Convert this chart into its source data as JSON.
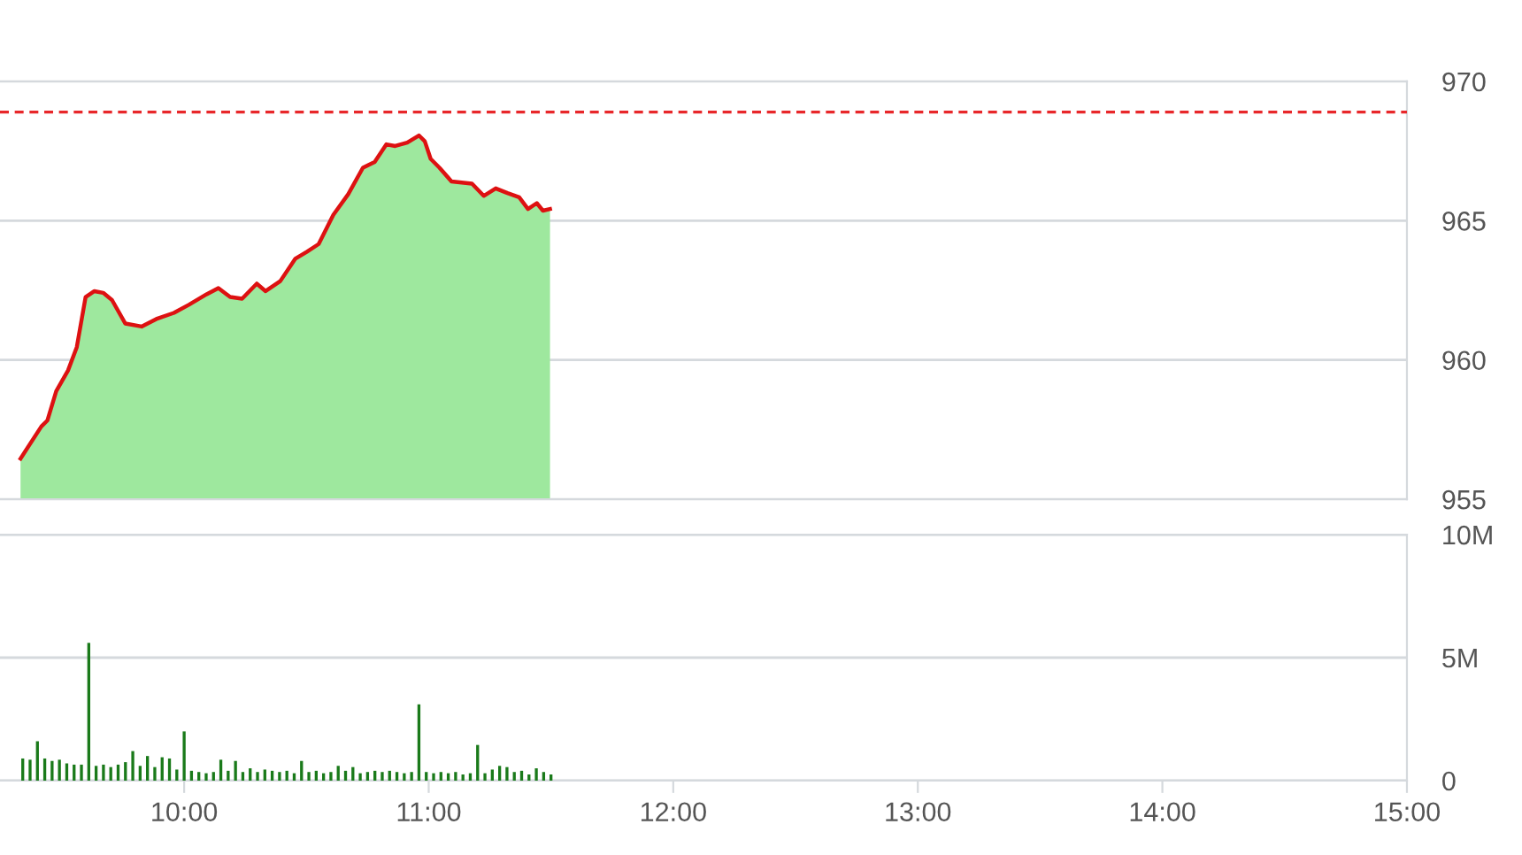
{
  "chart_data": [
    {
      "type": "area",
      "xlim": [
        9.247,
        15.0
      ],
      "ylim": [
        955,
        970
      ],
      "yticks": [
        955,
        960,
        965,
        970
      ],
      "grid": "y",
      "tick_labels": "y",
      "x": [
        9.331,
        9.416,
        9.441,
        9.477,
        9.525,
        9.561,
        9.597,
        9.633,
        9.669,
        9.705,
        9.759,
        9.826,
        9.886,
        9.958,
        10.019,
        10.092,
        10.14,
        10.188,
        10.237,
        10.297,
        10.333,
        10.393,
        10.454,
        10.501,
        10.55,
        10.61,
        10.671,
        10.731,
        10.779,
        10.827,
        10.863,
        10.912,
        10.96,
        10.984,
        11.008,
        11.044,
        11.093,
        11.177,
        11.225,
        11.274,
        11.322,
        11.37,
        11.406,
        11.442,
        11.467,
        11.496
      ],
      "series": [
        {
          "type": "area",
          "color": "#9ee89e",
          "values": [
            956.46,
            957.61,
            957.83,
            958.88,
            959.62,
            960.46,
            962.26,
            962.47,
            962.41,
            962.15,
            961.31,
            961.2,
            961.47,
            961.69,
            961.98,
            962.36,
            962.58,
            962.26,
            962.2,
            962.74,
            962.47,
            962.83,
            963.63,
            963.88,
            964.16,
            965.21,
            965.95,
            966.9,
            967.11,
            967.74,
            967.68,
            967.8,
            968.06,
            967.85,
            967.22,
            966.9,
            966.41,
            966.33,
            965.89,
            966.16,
            965.99,
            965.84,
            965.42,
            965.63,
            965.36,
            965.42
          ]
        },
        {
          "type": "line",
          "color": "#dd1111",
          "values": [
            956.46,
            957.61,
            957.83,
            958.88,
            959.62,
            960.46,
            962.26,
            962.47,
            962.41,
            962.15,
            961.31,
            961.2,
            961.47,
            961.69,
            961.98,
            962.36,
            962.58,
            962.26,
            962.2,
            962.74,
            962.47,
            962.83,
            963.63,
            963.88,
            964.16,
            965.21,
            965.95,
            966.9,
            967.11,
            967.74,
            967.68,
            967.8,
            968.06,
            967.85,
            967.22,
            966.9,
            966.41,
            966.33,
            965.89,
            966.16,
            965.99,
            965.84,
            965.42,
            965.63,
            965.36,
            965.42
          ]
        }
      ],
      "ref_lines": [
        {
          "axis": "y",
          "value": 968.9,
          "color": "#e8272a",
          "line_style": "dashed"
        }
      ]
    },
    {
      "type": "bar",
      "xlim": [
        9.247,
        15.0
      ],
      "xticks": [
        {
          "value": 10,
          "label": "10:00"
        },
        {
          "value": 11,
          "label": "11:00"
        },
        {
          "value": 12,
          "label": "12:00"
        },
        {
          "value": 13,
          "label": "13:00"
        },
        {
          "value": 14,
          "label": "14:00"
        },
        {
          "value": 15,
          "label": "15:00"
        }
      ],
      "ylim": [
        0,
        10
      ],
      "yticks": [
        {
          "value": 0,
          "label": "0"
        },
        {
          "value": 5,
          "label": "5M"
        },
        {
          "value": 10,
          "label": "10M"
        }
      ],
      "grid": "y",
      "color": "#1a7a1a",
      "x": [
        9.34,
        9.37,
        9.4,
        9.43,
        9.46,
        9.49,
        9.52,
        9.55,
        9.58,
        9.61,
        9.64,
        9.67,
        9.7,
        9.73,
        9.76,
        9.79,
        9.82,
        9.85,
        9.88,
        9.91,
        9.94,
        9.97,
        10.0,
        10.03,
        10.06,
        10.09,
        10.12,
        10.15,
        10.18,
        10.21,
        10.24,
        10.27,
        10.3,
        10.33,
        10.36,
        10.39,
        10.42,
        10.45,
        10.48,
        10.51,
        10.54,
        10.57,
        10.6,
        10.63,
        10.66,
        10.69,
        10.72,
        10.75,
        10.78,
        10.81,
        10.84,
        10.87,
        10.9,
        10.93,
        10.96,
        10.99,
        11.02,
        11.05,
        11.08,
        11.11,
        11.14,
        11.17,
        11.2,
        11.23,
        11.26,
        11.29,
        11.32,
        11.35,
        11.38,
        11.41,
        11.44,
        11.47,
        11.5
      ],
      "values": [
        0.9,
        0.85,
        1.6,
        0.9,
        0.8,
        0.85,
        0.7,
        0.65,
        0.65,
        5.6,
        0.6,
        0.65,
        0.55,
        0.65,
        0.75,
        1.2,
        0.6,
        1.0,
        0.55,
        0.95,
        0.9,
        0.45,
        2.0,
        0.4,
        0.35,
        0.3,
        0.35,
        0.85,
        0.4,
        0.8,
        0.35,
        0.5,
        0.35,
        0.45,
        0.4,
        0.35,
        0.4,
        0.3,
        0.8,
        0.35,
        0.4,
        0.3,
        0.35,
        0.6,
        0.4,
        0.55,
        0.3,
        0.35,
        0.4,
        0.35,
        0.4,
        0.35,
        0.3,
        0.35,
        3.1,
        0.35,
        0.3,
        0.35,
        0.3,
        0.35,
        0.25,
        0.3,
        1.45,
        0.3,
        0.45,
        0.6,
        0.55,
        0.35,
        0.4,
        0.25,
        0.5,
        0.35,
        0.25
      ]
    }
  ]
}
